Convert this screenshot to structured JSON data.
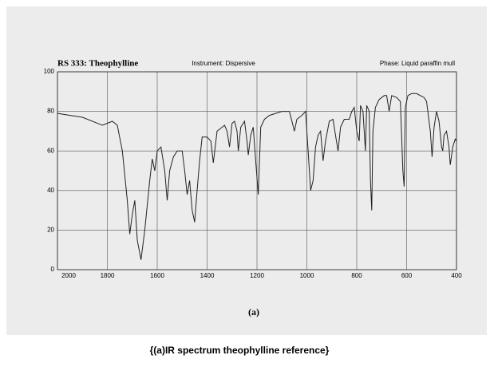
{
  "chart_data": {
    "type": "line",
    "title": "RS 333: Theophylline",
    "subtitle": "Instrument: Dispersive",
    "annotation": "Phase: Liquid paraffin mull",
    "panel_label": "(a)",
    "caption": "{(a)IR spectrum theophylline reference}",
    "xlim": [
      2000,
      400
    ],
    "ylim": [
      0,
      100
    ],
    "xticks": [
      2000,
      1800,
      1600,
      1400,
      1200,
      1000,
      800,
      600,
      400
    ],
    "yticks": [
      0,
      20,
      40,
      60,
      80,
      100
    ],
    "grid": true,
    "series": [
      {
        "color": "#222222",
        "x": [
          2000,
          1900,
          1820,
          1780,
          1760,
          1740,
          1720,
          1710,
          1700,
          1690,
          1680,
          1665,
          1650,
          1630,
          1620,
          1610,
          1600,
          1585,
          1570,
          1560,
          1550,
          1535,
          1520,
          1500,
          1490,
          1480,
          1470,
          1460,
          1450,
          1440,
          1430,
          1420,
          1400,
          1385,
          1375,
          1360,
          1330,
          1320,
          1310,
          1300,
          1290,
          1280,
          1275,
          1265,
          1250,
          1240,
          1235,
          1225,
          1215,
          1205,
          1195,
          1185,
          1170,
          1150,
          1100,
          1070,
          1060,
          1050,
          1040,
          1020,
          1005,
          995,
          985,
          975,
          965,
          955,
          945,
          935,
          925,
          910,
          895,
          885,
          875,
          865,
          850,
          830,
          820,
          810,
          800,
          790,
          785,
          775,
          765,
          760,
          750,
          745,
          740,
          735,
          725,
          710,
          690,
          680,
          670,
          660,
          640,
          625,
          615,
          610,
          605,
          595,
          580,
          560,
          545,
          530,
          520,
          505,
          498,
          490,
          480,
          470,
          460,
          455,
          450,
          440,
          430,
          425,
          415,
          405,
          400
        ],
        "values": [
          79,
          77,
          73,
          75,
          73,
          60,
          35,
          18,
          28,
          35,
          15,
          5,
          20,
          45,
          56,
          50,
          60,
          62,
          50,
          35,
          50,
          57,
          60,
          60,
          50,
          38,
          45,
          30,
          24,
          40,
          55,
          67,
          67,
          65,
          54,
          70,
          73,
          70,
          62,
          74,
          75,
          70,
          60,
          72,
          75,
          65,
          58,
          68,
          72,
          55,
          38,
          72,
          76,
          78,
          80,
          80,
          75,
          70,
          76,
          78,
          80,
          60,
          40,
          45,
          62,
          68,
          70,
          55,
          65,
          75,
          76,
          68,
          60,
          72,
          76,
          76,
          80,
          82,
          70,
          65,
          83,
          80,
          60,
          83,
          80,
          45,
          30,
          70,
          82,
          86,
          88,
          88,
          80,
          88,
          87,
          85,
          50,
          42,
          82,
          88,
          89,
          89,
          88,
          87,
          85,
          70,
          57,
          72,
          80,
          75,
          62,
          60,
          68,
          70,
          62,
          53,
          62,
          66,
          65
        ]
      }
    ]
  }
}
